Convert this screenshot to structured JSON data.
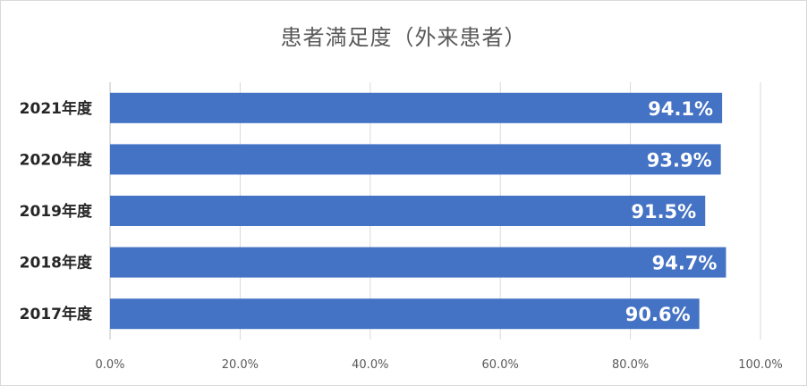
{
  "chart_data": {
    "type": "bar",
    "orientation": "horizontal",
    "title": "患者満足度（外来患者）",
    "categories": [
      "2021年度",
      "2020年度",
      "2019年度",
      "2018年度",
      "2017年度"
    ],
    "values": [
      94.1,
      93.9,
      91.5,
      94.7,
      90.6
    ],
    "data_labels": [
      "94.1%",
      "93.9%",
      "91.5%",
      "94.7%",
      "90.6%"
    ],
    "xlim": [
      0,
      100
    ],
    "x_ticks": [
      0,
      20,
      40,
      60,
      80,
      100
    ],
    "x_tick_labels": [
      "0.0%",
      "20.0%",
      "40.0%",
      "60.0%",
      "80.0%",
      "100.0%"
    ],
    "grid": "vertical",
    "legend": "none",
    "bar_color": "#4472c4"
  }
}
